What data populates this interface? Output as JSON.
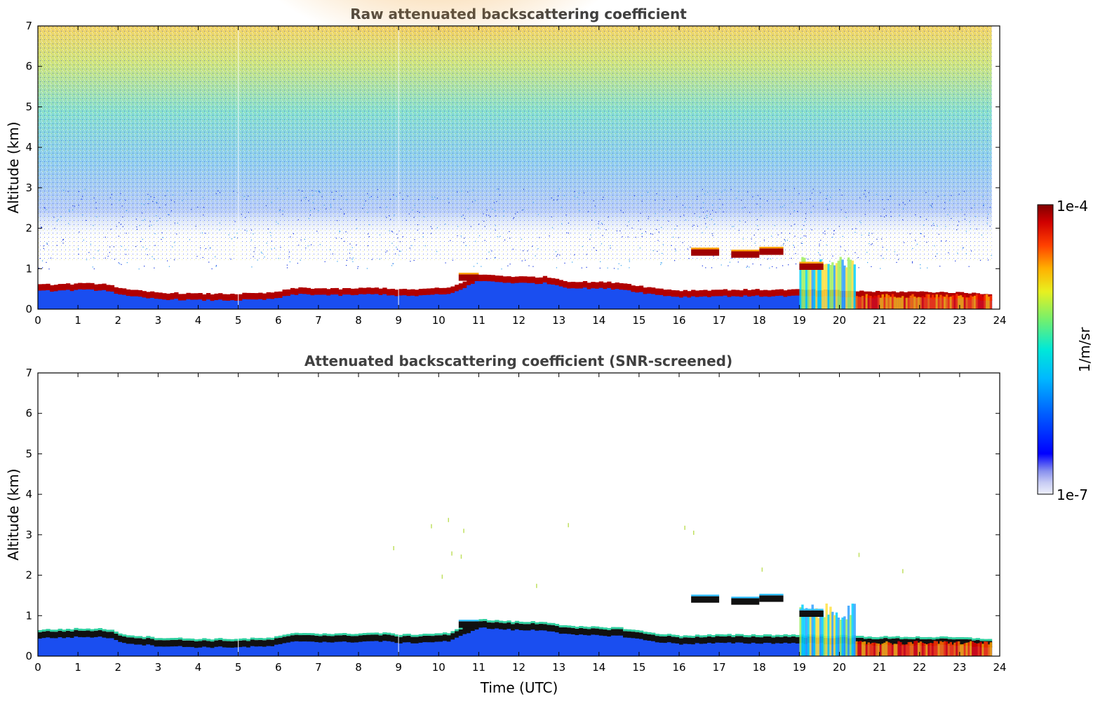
{
  "chart_data": [
    {
      "type": "heatmap",
      "title": "Raw attenuated backscattering coefficient",
      "xlabel": "",
      "ylabel": "Altitude (km)",
      "xlim": [
        0,
        24
      ],
      "ylim": [
        0,
        7
      ],
      "xticks": [
        "0",
        "1",
        "2",
        "3",
        "4",
        "5",
        "6",
        "7",
        "8",
        "9",
        "10",
        "11",
        "12",
        "13",
        "14",
        "15",
        "16",
        "17",
        "18",
        "19",
        "20",
        "21",
        "22",
        "23",
        "24"
      ],
      "yticks": [
        "0",
        "1",
        "2",
        "3",
        "4",
        "5",
        "6",
        "7"
      ],
      "data_end_hour": 23.8,
      "layer_height_km": [
        {
          "t": 0.0,
          "h": 0.52
        },
        {
          "t": 1.0,
          "h": 0.55
        },
        {
          "t": 1.7,
          "h": 0.55
        },
        {
          "t": 2.2,
          "h": 0.4
        },
        {
          "t": 3.0,
          "h": 0.33
        },
        {
          "t": 4.0,
          "h": 0.3
        },
        {
          "t": 5.0,
          "h": 0.3
        },
        {
          "t": 5.8,
          "h": 0.32
        },
        {
          "t": 6.5,
          "h": 0.45
        },
        {
          "t": 7.5,
          "h": 0.42
        },
        {
          "t": 8.5,
          "h": 0.45
        },
        {
          "t": 9.2,
          "h": 0.4
        },
        {
          "t": 10.3,
          "h": 0.45
        },
        {
          "t": 11.0,
          "h": 0.78
        },
        {
          "t": 12.0,
          "h": 0.72
        },
        {
          "t": 12.7,
          "h": 0.72
        },
        {
          "t": 13.3,
          "h": 0.6
        },
        {
          "t": 14.5,
          "h": 0.58
        },
        {
          "t": 15.3,
          "h": 0.45
        },
        {
          "t": 16.0,
          "h": 0.38
        },
        {
          "t": 17.0,
          "h": 0.4
        },
        {
          "t": 18.0,
          "h": 0.4
        },
        {
          "t": 19.0,
          "h": 0.4
        },
        {
          "t": 20.0,
          "h": 0.38
        },
        {
          "t": 21.0,
          "h": 0.35
        },
        {
          "t": 22.0,
          "h": 0.35
        },
        {
          "t": 23.0,
          "h": 0.33
        },
        {
          "t": 23.8,
          "h": 0.3
        }
      ],
      "elevated_layers": [
        {
          "t0": 16.3,
          "t1": 17.0,
          "h": 1.4
        },
        {
          "t0": 17.3,
          "t1": 18.0,
          "h": 1.35
        },
        {
          "t0": 18.0,
          "t1": 18.6,
          "h": 1.42
        },
        {
          "t0": 19.0,
          "t1": 19.6,
          "h": 1.05
        },
        {
          "t0": 10.5,
          "t1": 11.0,
          "h": 0.78
        }
      ]
    },
    {
      "type": "heatmap",
      "title": "Attenuated backscattering coefficient (SNR-screened)",
      "xlabel": "Time (UTC)",
      "ylabel": "Altitude (km)",
      "xlim": [
        0,
        24
      ],
      "ylim": [
        0,
        7
      ],
      "xticks": [
        "0",
        "1",
        "2",
        "3",
        "4",
        "5",
        "6",
        "7",
        "8",
        "9",
        "10",
        "11",
        "12",
        "13",
        "14",
        "15",
        "16",
        "17",
        "18",
        "19",
        "20",
        "21",
        "22",
        "23",
        "24"
      ],
      "yticks": [
        "0",
        "1",
        "2",
        "3",
        "4",
        "5",
        "6",
        "7"
      ],
      "data_end_hour": 23.8
    }
  ],
  "colorbar": {
    "label": "1/m/sr",
    "max_label": "1e-4",
    "min_label": "1e-7",
    "scale": "log",
    "colormap": [
      "#e8e8f8",
      "#9aa0f0",
      "#0000ff",
      "#0050ff",
      "#00a0ff",
      "#00e0f0",
      "#50f0a0",
      "#c0f040",
      "#ffe000",
      "#ff8000",
      "#ff2000",
      "#c00000",
      "#800000"
    ]
  }
}
